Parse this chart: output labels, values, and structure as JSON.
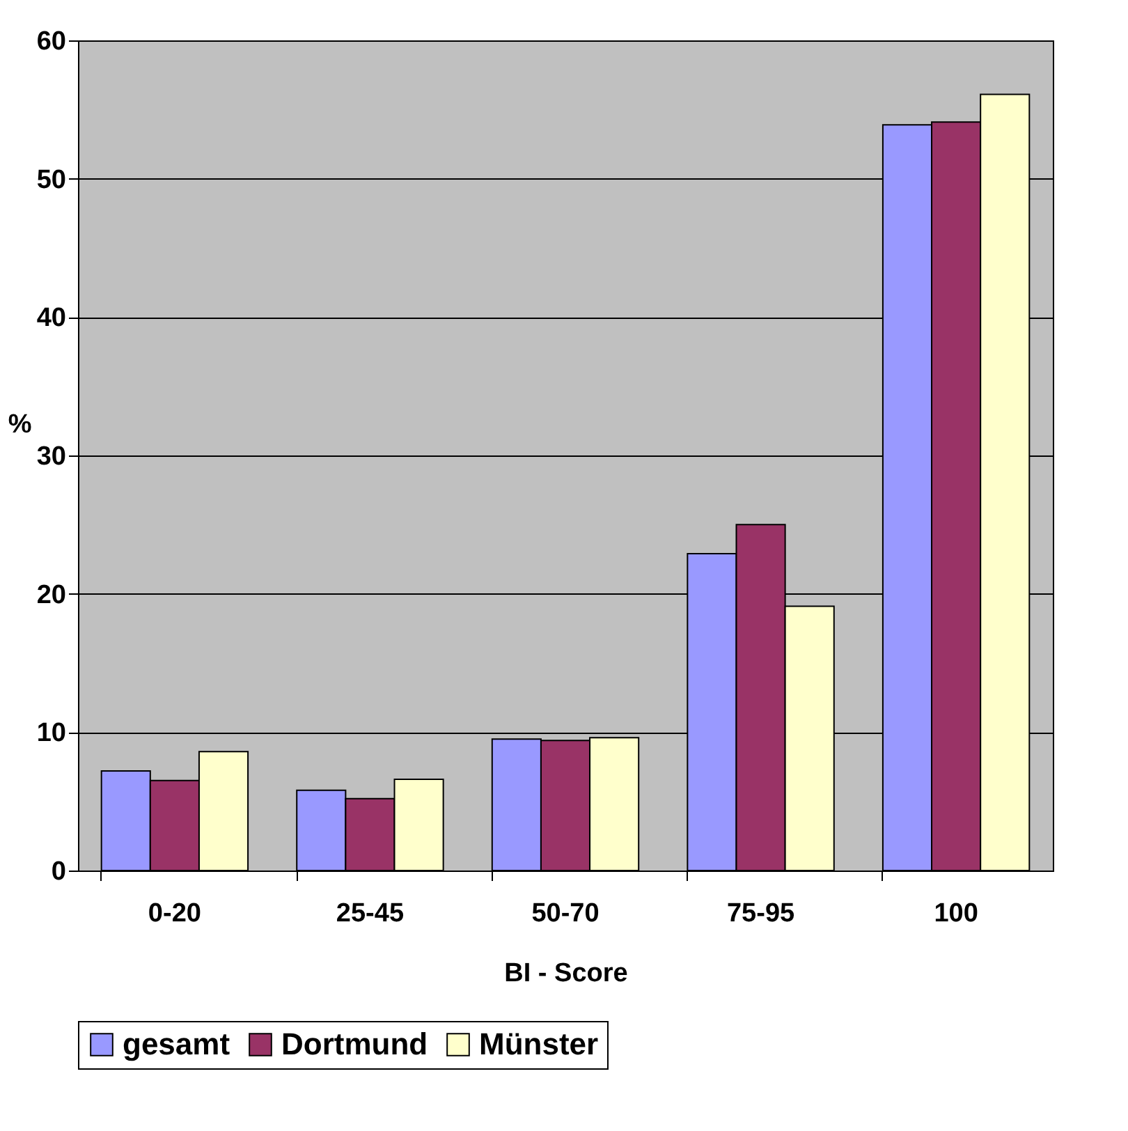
{
  "chart_data": {
    "type": "bar",
    "xlabel": "BI - Score",
    "ylabel": "%",
    "categories": [
      "0-20",
      "25-45",
      "50-70",
      "75-95",
      "100"
    ],
    "series": [
      {
        "name": "gesamt",
        "color": "#9999ff",
        "values": [
          7.2,
          5.8,
          9.5,
          22.9,
          53.9
        ]
      },
      {
        "name": "Dortmund",
        "color": "#993366",
        "values": [
          6.5,
          5.2,
          9.4,
          25.0,
          54.1
        ]
      },
      {
        "name": "Münster",
        "color": "#ffffcc",
        "values": [
          8.6,
          6.6,
          9.6,
          19.1,
          56.1
        ]
      }
    ],
    "ylim": [
      0,
      60
    ],
    "yticks": [
      0,
      10,
      20,
      30,
      40,
      50,
      60
    ],
    "grid": "y",
    "legend": "bottom"
  }
}
